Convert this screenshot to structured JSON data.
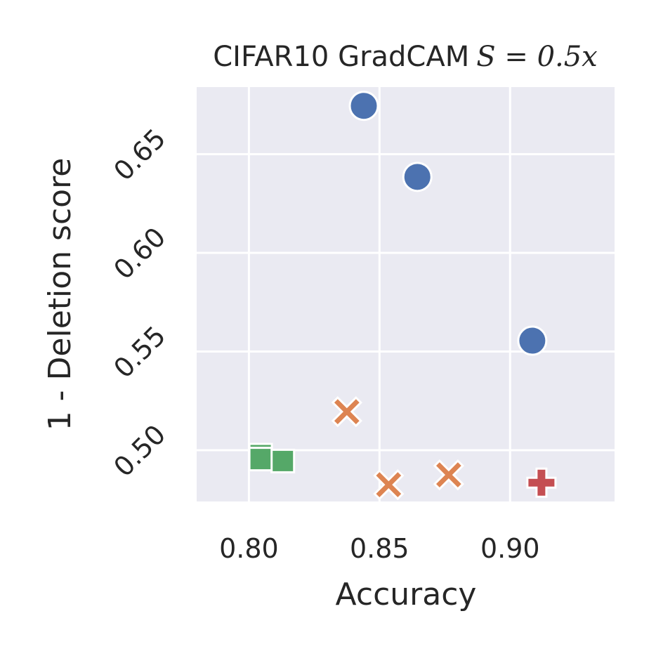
{
  "chart_data": {
    "type": "scatter",
    "title": "CIFAR10 GradCAM",
    "title_math": "S = 0.5x",
    "xlabel": "Accuracy",
    "ylabel": "1 - Deletion score",
    "xlim": [
      0.78,
      0.94
    ],
    "ylim": [
      0.474,
      0.684
    ],
    "xticks": [
      0.8,
      0.85,
      0.9
    ],
    "yticks": [
      0.5,
      0.55,
      0.6,
      0.65
    ],
    "grid": true,
    "background": "#eaeaf2",
    "series": [
      {
        "marker": "circle",
        "color": "#4c72b0",
        "points": [
          [
            0.844,
            0.6745
          ],
          [
            0.8645,
            0.6385
          ],
          [
            0.9085,
            0.5555
          ]
        ]
      },
      {
        "marker": "x",
        "color": "#dd8452",
        "points": [
          [
            0.8375,
            0.5195
          ],
          [
            0.8535,
            0.4825
          ],
          [
            0.8765,
            0.4875
          ]
        ]
      },
      {
        "marker": "square",
        "color": "#55a868",
        "points": [
          [
            0.8045,
            0.4975
          ],
          [
            0.8045,
            0.4955
          ],
          [
            0.813,
            0.4945
          ]
        ]
      },
      {
        "marker": "plus",
        "color": "#c44e52",
        "points": [
          [
            0.912,
            0.4835
          ]
        ]
      }
    ]
  }
}
